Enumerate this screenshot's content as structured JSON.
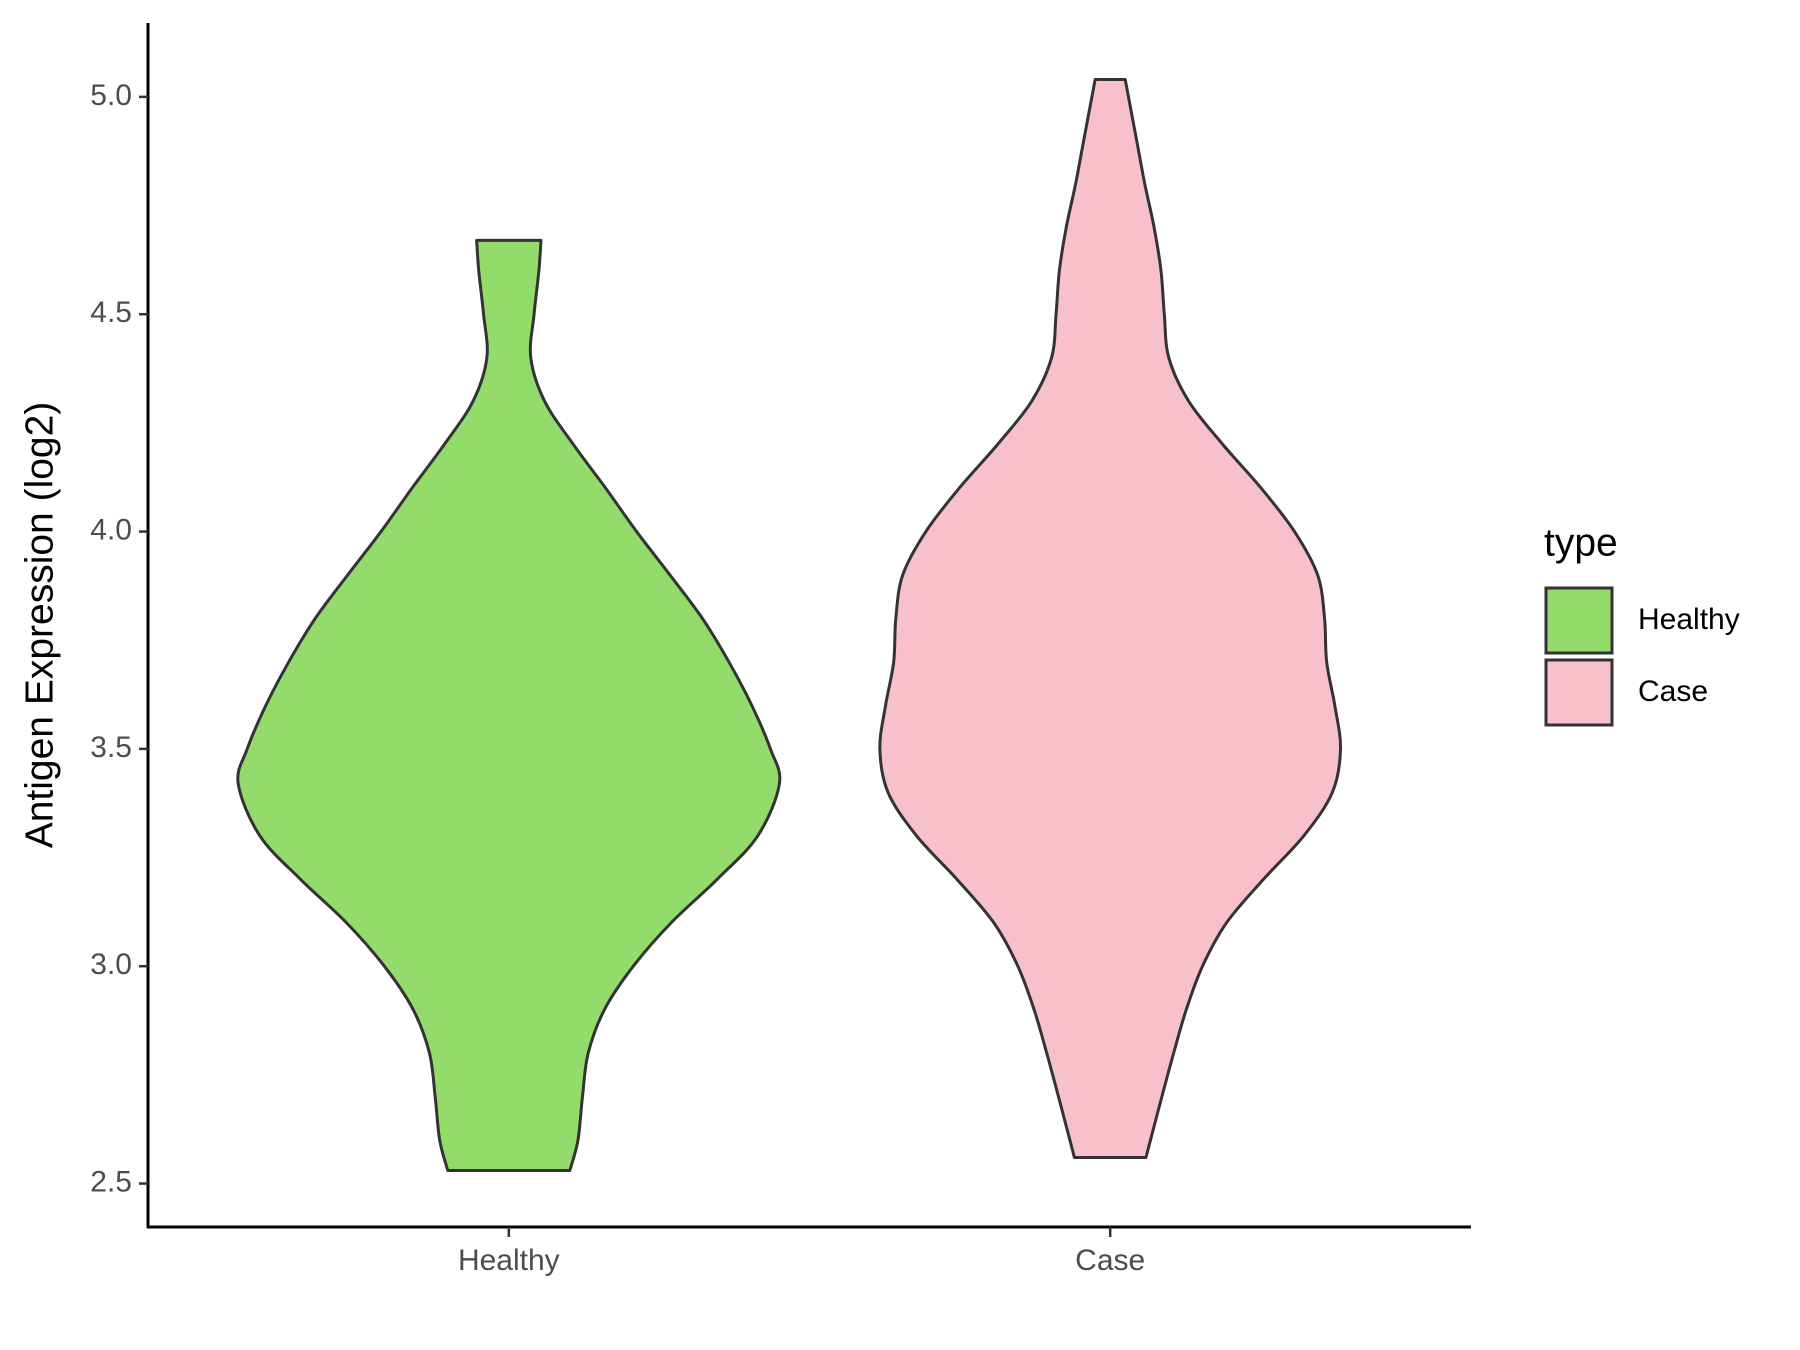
{
  "chart_data": {
    "type": "violin",
    "y_label": "Antigen Expression (log2)",
    "categories": [
      "Healthy",
      "Case"
    ],
    "legend_title": "type",
    "legend_position": "right",
    "ylim": [
      2.4,
      5.17
    ],
    "yticks": [
      2.5,
      {
        "value": 3,
        "label": "3.0"
      },
      3.5,
      {
        "value": 4,
        "label": "4.0"
      },
      4.5,
      {
        "value": 5,
        "label": "5.0"
      }
    ],
    "series": [
      {
        "name": "Healthy",
        "color": "#93dc6b",
        "y": [
          4.67,
          4.6,
          4.5,
          4.4,
          4.3,
          4.2,
          4.1,
          4.0,
          3.9,
          3.8,
          3.7,
          3.6,
          3.5,
          3.42,
          3.3,
          3.2,
          3.1,
          3.0,
          2.9,
          2.8,
          2.7,
          2.6,
          2.53
        ],
        "widths": [
          0.107,
          0.1,
          0.084,
          0.073,
          0.119,
          0.215,
          0.322,
          0.425,
          0.536,
          0.644,
          0.732,
          0.808,
          0.87,
          0.9,
          0.828,
          0.693,
          0.54,
          0.414,
          0.318,
          0.264,
          0.245,
          0.23,
          0.203
        ]
      },
      {
        "name": "Case",
        "color": "#f7c0cb",
        "y": [
          5.04,
          4.9,
          4.8,
          4.7,
          4.6,
          4.5,
          4.4,
          4.3,
          4.2,
          4.1,
          4.0,
          3.9,
          3.8,
          3.7,
          3.6,
          3.5,
          3.4,
          3.3,
          3.2,
          3.1,
          3.0,
          2.9,
          2.8,
          2.7,
          2.6,
          2.56
        ],
        "widths": [
          0.05,
          0.088,
          0.115,
          0.146,
          0.169,
          0.18,
          0.195,
          0.261,
          0.375,
          0.502,
          0.613,
          0.69,
          0.713,
          0.72,
          0.747,
          0.766,
          0.739,
          0.644,
          0.51,
          0.387,
          0.307,
          0.253,
          0.211,
          0.172,
          0.134,
          0.119
        ]
      }
    ]
  }
}
